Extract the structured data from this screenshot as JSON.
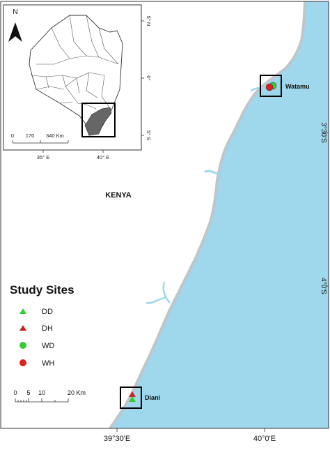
{
  "map": {
    "country_label": "KENYA",
    "sites_title": "Study Sites",
    "places": {
      "watamu": "Watamu",
      "diani": "Diani"
    },
    "north_label": "N",
    "colors": {
      "ocean": "#9fd7ed",
      "shore": "#bfc6cb",
      "land": "#ffffff",
      "red": "#e02020",
      "green": "#33cc33",
      "coast_region": "#666666"
    },
    "legend": [
      {
        "code": "DD",
        "symbol": "triangle",
        "color": "#33cc33"
      },
      {
        "code": "DH",
        "symbol": "triangle",
        "color": "#cc2222"
      },
      {
        "code": "WD",
        "symbol": "circle",
        "color": "#33cc33"
      },
      {
        "code": "WH",
        "symbol": "circle",
        "color": "#e02020"
      }
    ],
    "scale_bar": {
      "ticks": [
        "0",
        "5",
        "10",
        "20 Km"
      ]
    },
    "main_axes": {
      "bottom": [
        "39°30'E",
        "40°0'E"
      ],
      "right": [
        "3°30'S",
        "4°0'S"
      ]
    },
    "inset": {
      "scale_ticks": [
        "0",
        "170",
        "340 Km"
      ],
      "bottom": [
        "35° E",
        "40° E"
      ],
      "right": [
        "5° N",
        "0°",
        "5° S"
      ]
    }
  }
}
